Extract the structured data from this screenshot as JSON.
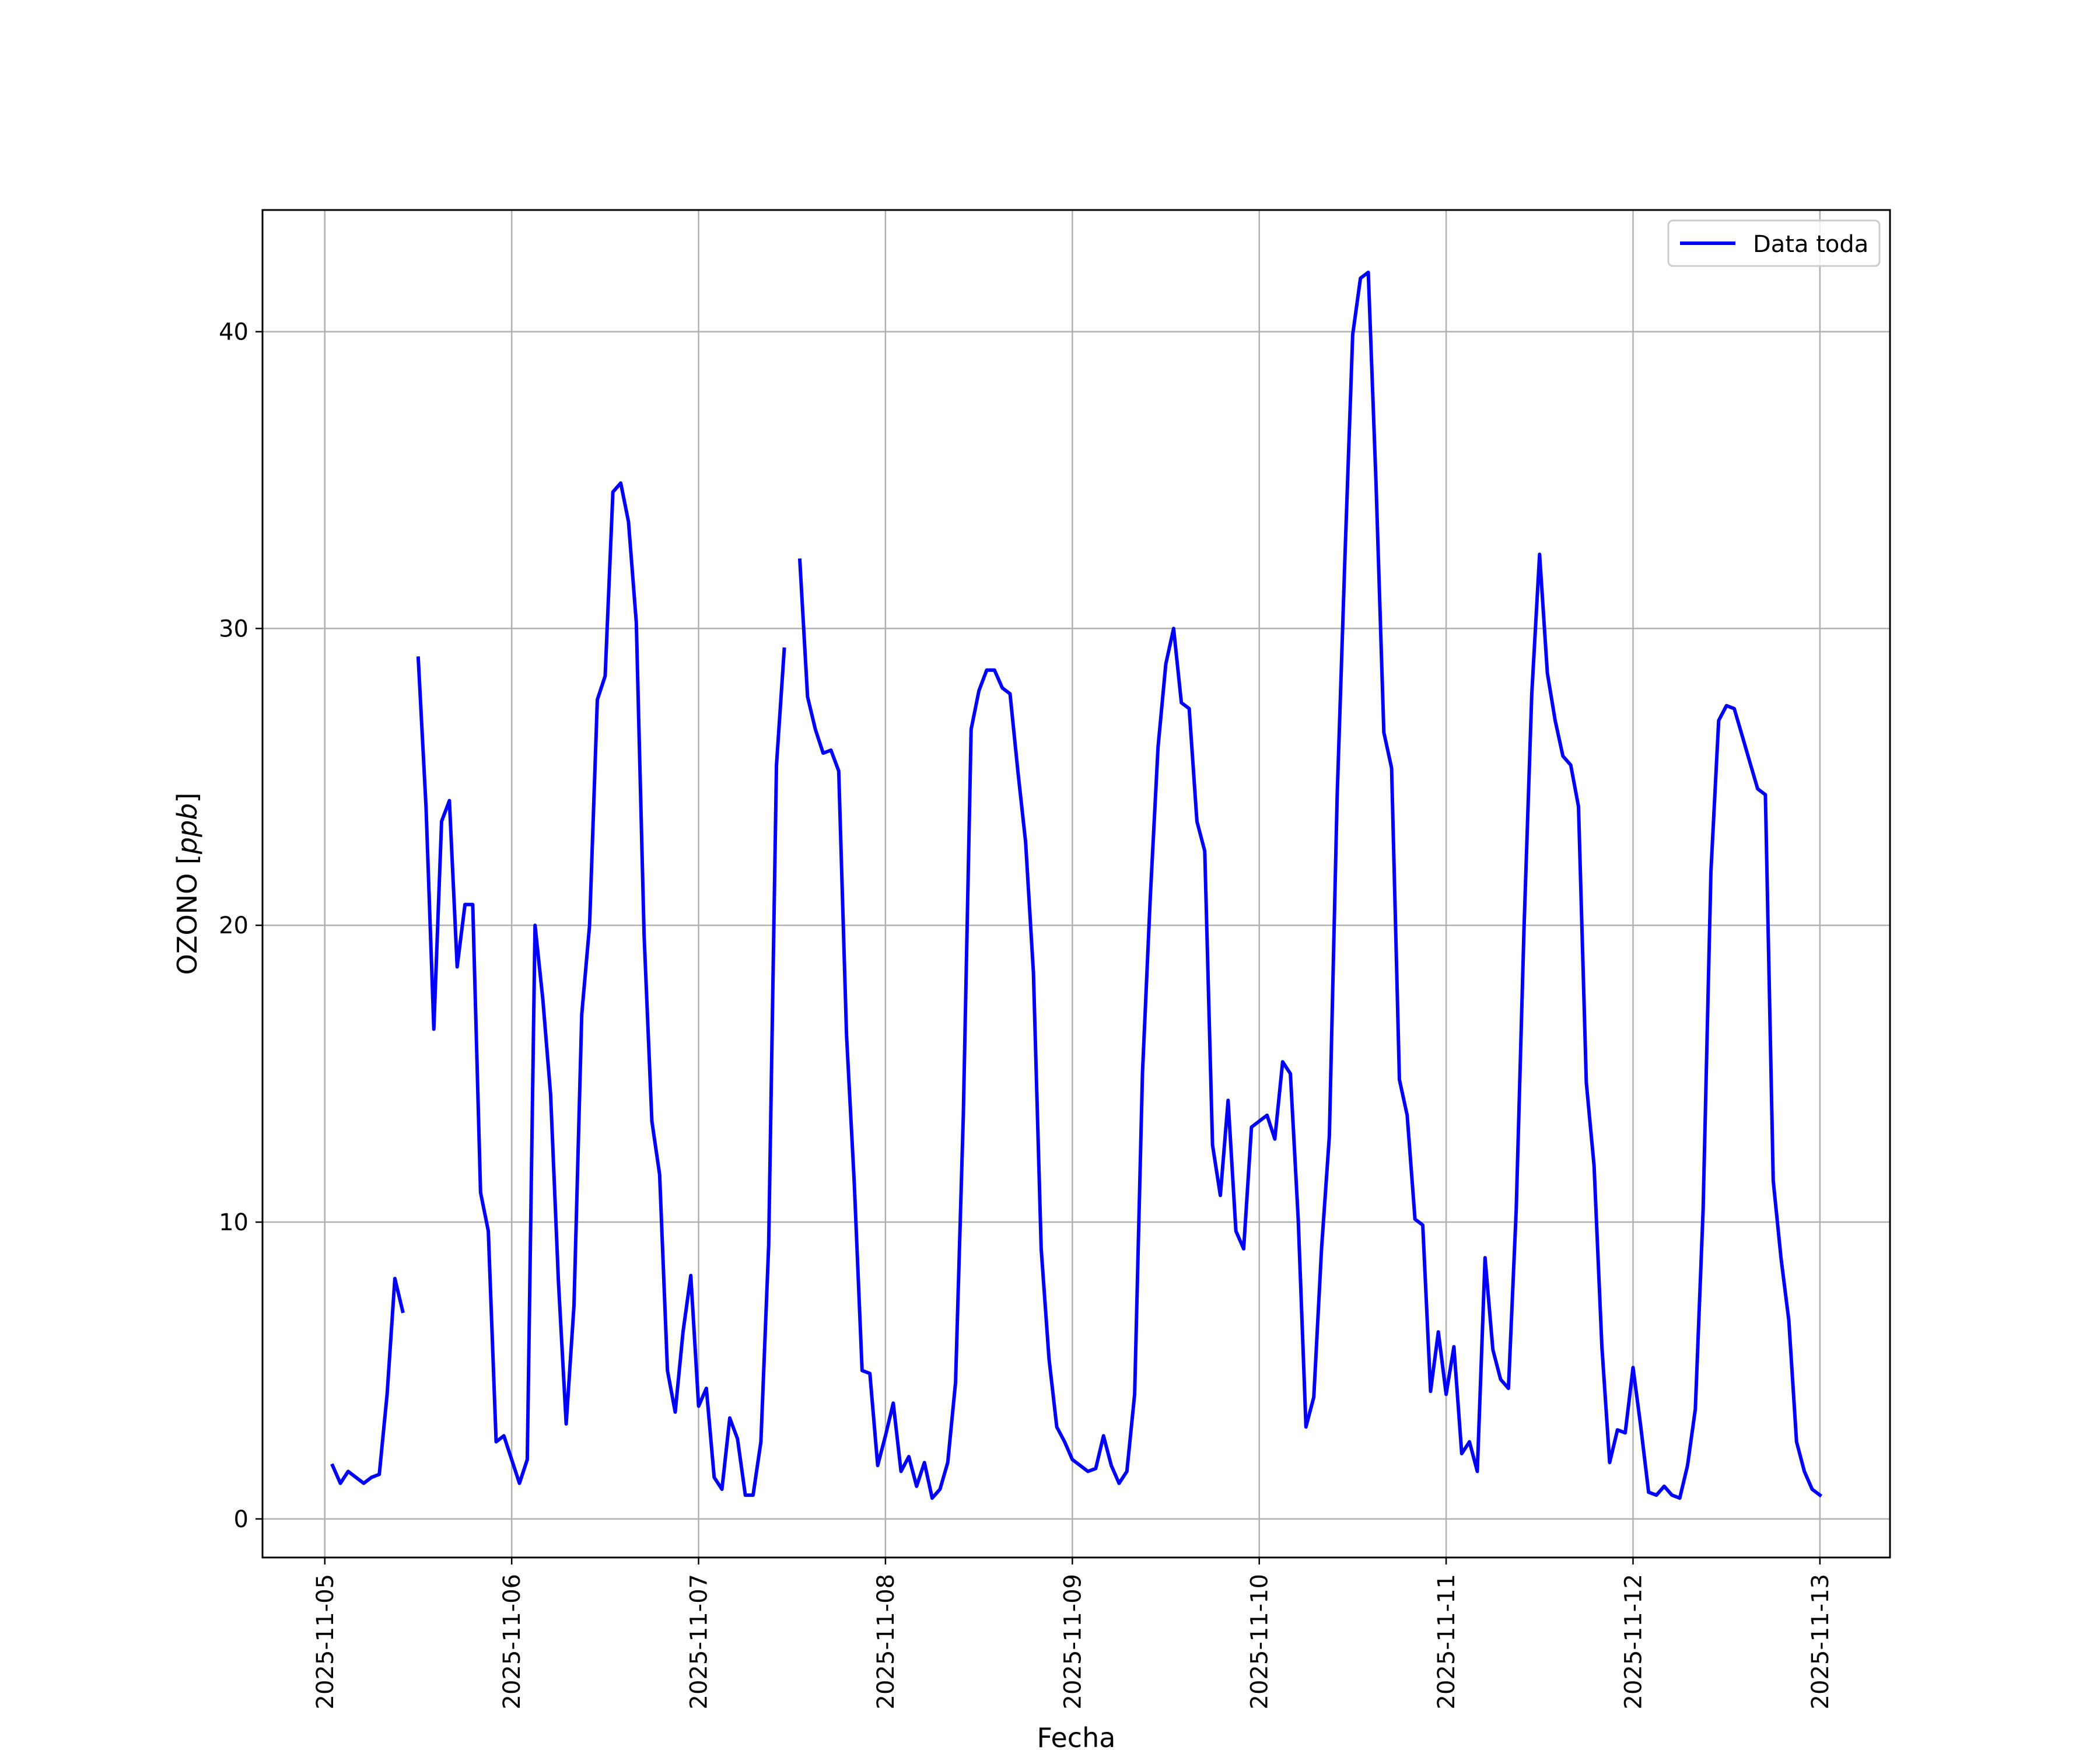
{
  "chart_data": {
    "type": "line",
    "title": "",
    "xlabel": "Fecha",
    "ylabel_prefix": "OZONO [",
    "ylabel_unit": "ppb",
    "ylabel_suffix": "]",
    "xlim": [
      "2025-11-04 16:00",
      "2025-11-13 09:00"
    ],
    "ylim": [
      -1.3,
      44.1
    ],
    "x_ticks": [
      {
        "value": "2025-11-05 00:00",
        "label": "2025-11-05"
      },
      {
        "value": "2025-11-06 00:00",
        "label": "2025-11-06"
      },
      {
        "value": "2025-11-07 00:00",
        "label": "2025-11-07"
      },
      {
        "value": "2025-11-08 00:00",
        "label": "2025-11-08"
      },
      {
        "value": "2025-11-09 00:00",
        "label": "2025-11-09"
      },
      {
        "value": "2025-11-10 00:00",
        "label": "2025-11-10"
      },
      {
        "value": "2025-11-11 00:00",
        "label": "2025-11-11"
      },
      {
        "value": "2025-11-12 00:00",
        "label": "2025-11-12"
      },
      {
        "value": "2025-11-13 00:00",
        "label": "2025-11-13"
      }
    ],
    "y_ticks": [
      0,
      10,
      20,
      30,
      40
    ],
    "grid": true,
    "legend_position": "top-right",
    "colors": {
      "series": "#0000ff",
      "grid": "#b0b0b0",
      "axes": "#000000"
    },
    "series": [
      {
        "name": "Data toda",
        "segments": [
          [
            [
              "2025-11-05 01:00",
              1.8
            ],
            [
              "2025-11-05 02:00",
              1.2
            ],
            [
              "2025-11-05 03:00",
              1.6
            ],
            [
              "2025-11-05 05:00",
              1.2
            ],
            [
              "2025-11-05 06:00",
              1.4
            ],
            [
              "2025-11-05 07:00",
              1.5
            ],
            [
              "2025-11-05 08:00",
              4.2
            ],
            [
              "2025-11-05 09:00",
              8.1
            ],
            [
              "2025-11-05 10:00",
              7.0
            ]
          ],
          [
            [
              "2025-11-05 12:00",
              29.0
            ],
            [
              "2025-11-05 13:00",
              24.0
            ],
            [
              "2025-11-05 14:00",
              16.5
            ],
            [
              "2025-11-05 15:00",
              23.5
            ],
            [
              "2025-11-05 16:00",
              24.2
            ],
            [
              "2025-11-05 17:00",
              18.6
            ],
            [
              "2025-11-05 18:00",
              20.7
            ],
            [
              "2025-11-05 19:00",
              20.7
            ],
            [
              "2025-11-05 20:00",
              11.0
            ],
            [
              "2025-11-05 21:00",
              9.7
            ],
            [
              "2025-11-05 22:00",
              2.6
            ],
            [
              "2025-11-05 23:00",
              2.8
            ],
            [
              "2025-11-06 01:00",
              1.2
            ],
            [
              "2025-11-06 02:00",
              2.0
            ],
            [
              "2025-11-06 03:00",
              20.0
            ],
            [
              "2025-11-06 04:00",
              17.5
            ],
            [
              "2025-11-06 05:00",
              14.3
            ],
            [
              "2025-11-06 06:00",
              8.0
            ],
            [
              "2025-11-06 07:00",
              3.2
            ],
            [
              "2025-11-06 08:00",
              7.2
            ],
            [
              "2025-11-06 09:00",
              17.0
            ],
            [
              "2025-11-06 10:00",
              20.0
            ],
            [
              "2025-11-06 11:00",
              27.6
            ],
            [
              "2025-11-06 12:00",
              28.4
            ],
            [
              "2025-11-06 13:00",
              34.6
            ],
            [
              "2025-11-06 14:00",
              34.9
            ],
            [
              "2025-11-06 15:00",
              33.6
            ],
            [
              "2025-11-06 16:00",
              30.2
            ],
            [
              "2025-11-06 17:00",
              19.7
            ],
            [
              "2025-11-06 18:00",
              13.4
            ],
            [
              "2025-11-06 19:00",
              11.6
            ],
            [
              "2025-11-06 20:00",
              5.0
            ],
            [
              "2025-11-06 21:00",
              3.6
            ],
            [
              "2025-11-06 22:00",
              6.3
            ],
            [
              "2025-11-06 23:00",
              8.2
            ],
            [
              "2025-11-07 00:00",
              3.8
            ],
            [
              "2025-11-07 01:00",
              4.4
            ],
            [
              "2025-11-07 02:00",
              1.4
            ],
            [
              "2025-11-07 03:00",
              1.0
            ],
            [
              "2025-11-07 04:00",
              3.4
            ],
            [
              "2025-11-07 05:00",
              2.7
            ],
            [
              "2025-11-07 06:00",
              0.8
            ],
            [
              "2025-11-07 07:00",
              0.8
            ],
            [
              "2025-11-07 08:00",
              2.6
            ],
            [
              "2025-11-07 09:00",
              9.2
            ],
            [
              "2025-11-07 10:00",
              25.4
            ],
            [
              "2025-11-07 11:00",
              29.3
            ]
          ],
          [
            [
              "2025-11-07 13:00",
              32.3
            ],
            [
              "2025-11-07 14:00",
              27.7
            ],
            [
              "2025-11-07 15:00",
              26.6
            ],
            [
              "2025-11-07 16:00",
              25.8
            ],
            [
              "2025-11-07 17:00",
              25.9
            ],
            [
              "2025-11-07 18:00",
              25.2
            ],
            [
              "2025-11-07 19:00",
              16.3
            ],
            [
              "2025-11-07 20:00",
              11.3
            ],
            [
              "2025-11-07 21:00",
              5.0
            ],
            [
              "2025-11-07 22:00",
              4.9
            ],
            [
              "2025-11-07 23:00",
              1.8
            ],
            [
              "2025-11-08 00:00",
              2.8
            ],
            [
              "2025-11-08 01:00",
              3.9
            ],
            [
              "2025-11-08 02:00",
              1.6
            ],
            [
              "2025-11-08 03:00",
              2.1
            ],
            [
              "2025-11-08 04:00",
              1.1
            ],
            [
              "2025-11-08 05:00",
              1.9
            ],
            [
              "2025-11-08 06:00",
              0.7
            ],
            [
              "2025-11-08 07:00",
              1.0
            ],
            [
              "2025-11-08 08:00",
              1.9
            ],
            [
              "2025-11-08 09:00",
              4.6
            ],
            [
              "2025-11-08 10:00",
              13.6
            ],
            [
              "2025-11-08 11:00",
              26.6
            ],
            [
              "2025-11-08 12:00",
              27.9
            ],
            [
              "2025-11-08 13:00",
              28.6
            ],
            [
              "2025-11-08 14:00",
              28.6
            ],
            [
              "2025-11-08 15:00",
              28.0
            ],
            [
              "2025-11-08 16:00",
              27.8
            ],
            [
              "2025-11-08 17:00",
              25.2
            ],
            [
              "2025-11-08 18:00",
              22.8
            ],
            [
              "2025-11-08 19:00",
              18.4
            ],
            [
              "2025-11-08 20:00",
              9.1
            ],
            [
              "2025-11-08 21:00",
              5.4
            ],
            [
              "2025-11-08 22:00",
              3.1
            ],
            [
              "2025-11-08 23:00",
              2.6
            ],
            [
              "2025-11-09 00:00",
              2.0
            ],
            [
              "2025-11-09 01:00",
              1.8
            ],
            [
              "2025-11-09 02:00",
              1.6
            ],
            [
              "2025-11-09 03:00",
              1.7
            ],
            [
              "2025-11-09 04:00",
              2.8
            ],
            [
              "2025-11-09 05:00",
              1.8
            ],
            [
              "2025-11-09 06:00",
              1.2
            ],
            [
              "2025-11-09 07:00",
              1.6
            ],
            [
              "2025-11-09 08:00",
              4.2
            ],
            [
              "2025-11-09 09:00",
              15.0
            ],
            [
              "2025-11-09 10:00",
              20.9
            ],
            [
              "2025-11-09 11:00",
              26.0
            ],
            [
              "2025-11-09 12:00",
              28.8
            ],
            [
              "2025-11-09 13:00",
              30.0
            ],
            [
              "2025-11-09 14:00",
              27.5
            ],
            [
              "2025-11-09 15:00",
              27.3
            ],
            [
              "2025-11-09 16:00",
              23.5
            ],
            [
              "2025-11-09 17:00",
              22.5
            ],
            [
              "2025-11-09 18:00",
              12.6
            ],
            [
              "2025-11-09 19:00",
              10.9
            ],
            [
              "2025-11-09 20:00",
              14.1
            ],
            [
              "2025-11-09 21:00",
              9.7
            ],
            [
              "2025-11-09 22:00",
              9.1
            ],
            [
              "2025-11-09 23:00",
              13.2
            ],
            [
              "2025-11-10 00:00",
              13.4
            ],
            [
              "2025-11-10 01:00",
              13.6
            ],
            [
              "2025-11-10 02:00",
              12.8
            ],
            [
              "2025-11-10 03:00",
              15.4
            ],
            [
              "2025-11-10 04:00",
              15.0
            ],
            [
              "2025-11-10 05:00",
              10.1
            ],
            [
              "2025-11-10 06:00",
              3.1
            ],
            [
              "2025-11-10 07:00",
              4.1
            ],
            [
              "2025-11-10 08:00",
              9.1
            ],
            [
              "2025-11-10 09:00",
              12.9
            ],
            [
              "2025-11-10 10:00",
              24.3
            ],
            [
              "2025-11-10 11:00",
              32.4
            ],
            [
              "2025-11-10 12:00",
              39.9
            ],
            [
              "2025-11-10 13:00",
              41.8
            ],
            [
              "2025-11-10 14:00",
              42.0
            ],
            [
              "2025-11-10 15:00",
              34.9
            ],
            [
              "2025-11-10 16:00",
              26.5
            ],
            [
              "2025-11-10 17:00",
              25.3
            ],
            [
              "2025-11-10 18:00",
              14.8
            ],
            [
              "2025-11-10 19:00",
              13.6
            ],
            [
              "2025-11-10 20:00",
              10.1
            ],
            [
              "2025-11-10 21:00",
              9.9
            ],
            [
              "2025-11-10 22:00",
              4.3
            ],
            [
              "2025-11-10 23:00",
              6.3
            ],
            [
              "2025-11-11 00:00",
              4.2
            ],
            [
              "2025-11-11 01:00",
              5.8
            ],
            [
              "2025-11-11 02:00",
              2.2
            ],
            [
              "2025-11-11 03:00",
              2.6
            ],
            [
              "2025-11-11 04:00",
              1.6
            ],
            [
              "2025-11-11 05:00",
              8.8
            ],
            [
              "2025-11-11 06:00",
              5.7
            ],
            [
              "2025-11-11 07:00",
              4.7
            ],
            [
              "2025-11-11 08:00",
              4.4
            ],
            [
              "2025-11-11 09:00",
              10.4
            ],
            [
              "2025-11-11 10:00",
              19.9
            ],
            [
              "2025-11-11 11:00",
              27.8
            ],
            [
              "2025-11-11 12:00",
              32.5
            ],
            [
              "2025-11-11 13:00",
              28.5
            ],
            [
              "2025-11-11 14:00",
              26.9
            ],
            [
              "2025-11-11 15:00",
              25.7
            ],
            [
              "2025-11-11 16:00",
              25.4
            ],
            [
              "2025-11-11 17:00",
              24.0
            ],
            [
              "2025-11-11 18:00",
              14.7
            ],
            [
              "2025-11-11 19:00",
              11.9
            ],
            [
              "2025-11-11 20:00",
              5.8
            ],
            [
              "2025-11-11 21:00",
              1.9
            ],
            [
              "2025-11-11 22:00",
              3.0
            ],
            [
              "2025-11-11 23:00",
              2.9
            ],
            [
              "2025-11-12 00:00",
              5.1
            ],
            [
              "2025-11-12 01:00",
              3.1
            ],
            [
              "2025-11-12 02:00",
              0.9
            ],
            [
              "2025-11-12 03:00",
              0.8
            ],
            [
              "2025-11-12 04:00",
              1.1
            ],
            [
              "2025-11-12 05:00",
              0.8
            ],
            [
              "2025-11-12 06:00",
              0.7
            ],
            [
              "2025-11-12 07:00",
              1.8
            ],
            [
              "2025-11-12 08:00",
              3.7
            ],
            [
              "2025-11-12 09:00",
              10.4
            ],
            [
              "2025-11-12 10:00",
              21.8
            ],
            [
              "2025-11-12 11:00",
              26.9
            ],
            [
              "2025-11-12 12:00",
              27.4
            ],
            [
              "2025-11-12 13:00",
              27.3
            ],
            [
              "2025-11-12 14:00",
              26.4
            ],
            [
              "2025-11-12 15:00",
              25.5
            ],
            [
              "2025-11-12 16:00",
              24.6
            ],
            [
              "2025-11-12 17:00",
              24.4
            ],
            [
              "2025-11-12 18:00",
              11.4
            ],
            [
              "2025-11-12 19:00",
              8.8
            ],
            [
              "2025-11-12 20:00",
              6.7
            ],
            [
              "2025-11-12 21:00",
              2.6
            ],
            [
              "2025-11-12 22:00",
              1.6
            ],
            [
              "2025-11-12 23:00",
              1.0
            ],
            [
              "2025-11-13 00:00",
              0.8
            ]
          ]
        ]
      }
    ]
  }
}
